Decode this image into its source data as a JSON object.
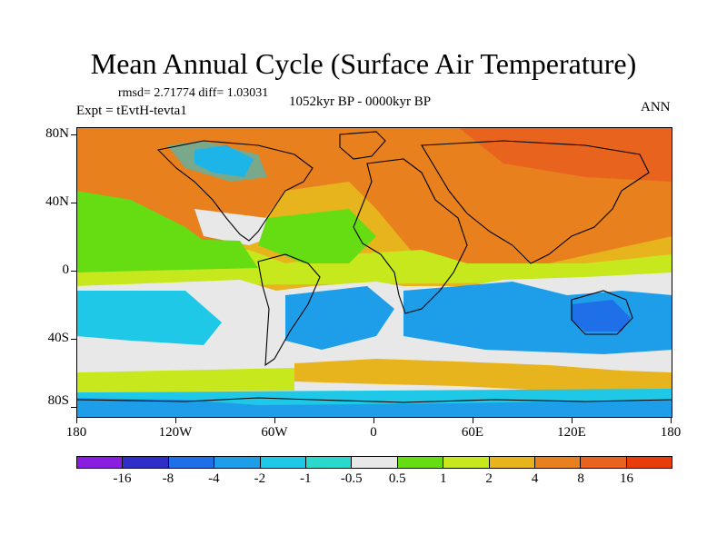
{
  "figure": {
    "title": "Mean Annual Cycle (Surface Air Temperature)",
    "stats": "rmsd= 2.71774 diff= 1.03031",
    "experiment": "Expt = tEvtH-tevta1",
    "period": "1052kyr BP - 0000kyr BP",
    "season": "ANN"
  },
  "axes": {
    "lat_labels": [
      "80N",
      "40N",
      "0",
      "40S",
      "80S"
    ],
    "lon_labels": [
      "180",
      "120W",
      "60W",
      "0",
      "60E",
      "120E",
      "180"
    ]
  },
  "colorbar": {
    "labels": [
      "-16",
      "-8",
      "-4",
      "-2",
      "-1",
      "-0.5",
      "0.5",
      "1",
      "2",
      "4",
      "8",
      "16"
    ],
    "colors": [
      "#8a1ee0",
      "#2f2fc8",
      "#1e6fe8",
      "#1e9ee8",
      "#1ec8e6",
      "#2ad8cc",
      "#e8e8e8",
      "#66dd12",
      "#c8e81e",
      "#e8b41e",
      "#e8801e",
      "#e8641e",
      "#e83c0a"
    ]
  },
  "map_colors": {
    "ocean_warm": "#e8801e",
    "land_warm": "#e8801e",
    "hot": "#e8641e",
    "gold": "#e8b41e",
    "yellowgreen": "#c8e81e",
    "green": "#66dd12",
    "neutral": "#e8e8e8",
    "cyan": "#1ec8e6",
    "blue": "#1e9ee8",
    "deepblue": "#1e6fe8",
    "teal": "#2ad8cc"
  }
}
